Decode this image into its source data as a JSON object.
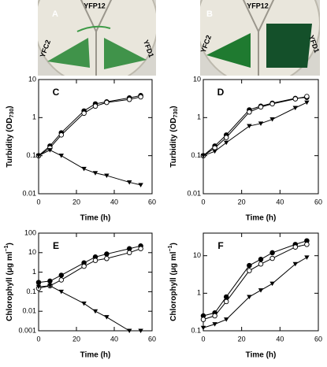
{
  "photos": [
    {
      "label": "A",
      "top": "YFP12",
      "left": "YFC2",
      "right": "YFD1"
    },
    {
      "label": "B",
      "top": "YFP12",
      "left": "YFC2",
      "right": "YFD1"
    }
  ],
  "chart_data": [
    {
      "type": "line",
      "panel": "C",
      "xlabel": "Time (h)",
      "ylabel_parts": [
        "Turbidity (OD",
        "730",
        ")"
      ],
      "ylabel_styles": [
        "normal",
        "sub",
        "normal"
      ],
      "log_y": true,
      "xlim": [
        0,
        60
      ],
      "xticks": [
        0,
        20,
        40,
        60
      ],
      "ylim": [
        0.01,
        10
      ],
      "yticks": [
        0.01,
        0.1,
        1,
        10
      ],
      "x": [
        0,
        6,
        12,
        24,
        30,
        36,
        48,
        54
      ],
      "series": [
        {
          "marker": "filled-circle",
          "color": "#000000",
          "values": [
            0.1,
            0.18,
            0.4,
            1.5,
            2.3,
            2.6,
            3.3,
            3.8
          ]
        },
        {
          "marker": "open-circle",
          "color": "#000000",
          "values": [
            0.1,
            0.16,
            0.35,
            1.3,
            2.0,
            2.5,
            3.0,
            3.5
          ]
        },
        {
          "marker": "triangle-down",
          "color": "#000000",
          "values": [
            0.1,
            0.14,
            0.1,
            0.045,
            0.035,
            0.03,
            0.02,
            0.017
          ]
        }
      ]
    },
    {
      "type": "line",
      "panel": "D",
      "xlabel": "Time (h)",
      "ylabel_parts": [
        "Turbidity (OD",
        "730",
        ")"
      ],
      "ylabel_styles": [
        "normal",
        "sub",
        "normal"
      ],
      "log_y": true,
      "xlim": [
        0,
        60
      ],
      "xticks": [
        0,
        20,
        40,
        60
      ],
      "ylim": [
        0.01,
        10
      ],
      "yticks": [
        0.01,
        0.1,
        1,
        10
      ],
      "x": [
        0,
        6,
        12,
        24,
        30,
        36,
        48,
        54
      ],
      "series": [
        {
          "marker": "filled-circle",
          "color": "#000000",
          "values": [
            0.1,
            0.18,
            0.35,
            1.6,
            2.0,
            2.4,
            3.2,
            3.4
          ]
        },
        {
          "marker": "open-circle",
          "color": "#000000",
          "values": [
            0.1,
            0.16,
            0.3,
            1.4,
            1.9,
            2.3,
            3.1,
            3.6
          ]
        },
        {
          "marker": "triangle-down",
          "color": "#000000",
          "values": [
            0.1,
            0.13,
            0.22,
            0.6,
            0.7,
            0.9,
            1.8,
            2.5
          ]
        }
      ]
    },
    {
      "type": "line",
      "panel": "E",
      "xlabel": "Time (h)",
      "ylabel_parts": [
        "Chlorophyll (μg ml",
        "−1",
        ")"
      ],
      "ylabel_styles": [
        "normal",
        "sup",
        "normal"
      ],
      "log_y": true,
      "xlim": [
        0,
        60
      ],
      "xticks": [
        0,
        20,
        40,
        60
      ],
      "ylim": [
        0.001,
        100
      ],
      "yticks": [
        0.001,
        0.01,
        0.1,
        1,
        10,
        100
      ],
      "x": [
        0,
        6,
        12,
        24,
        30,
        36,
        48,
        54
      ],
      "series": [
        {
          "marker": "filled-circle",
          "color": "#000000",
          "values": [
            0.3,
            0.35,
            0.7,
            3,
            6,
            8.5,
            16,
            22
          ]
        },
        {
          "marker": "open-circle",
          "color": "#000000",
          "values": [
            0.15,
            0.2,
            0.4,
            2,
            4,
            5,
            10,
            16
          ]
        },
        {
          "marker": "triangle-down",
          "color": "#000000",
          "values": [
            0.18,
            0.2,
            0.1,
            0.025,
            0.01,
            0.005,
            0.001,
            0.001
          ]
        }
      ]
    },
    {
      "type": "line",
      "panel": "F",
      "xlabel": "Time (h)",
      "ylabel_parts": [
        "Chlorophyll (μg ml",
        "−1",
        ")"
      ],
      "ylabel_styles": [
        "normal",
        "sup",
        "normal"
      ],
      "log_y": true,
      "xlim": [
        0,
        60
      ],
      "xticks": [
        0,
        20,
        40,
        60
      ],
      "ylim": [
        0.1,
        40
      ],
      "yticks": [
        0.1,
        1,
        10
      ],
      "x": [
        0,
        6,
        12,
        24,
        30,
        36,
        48,
        54
      ],
      "series": [
        {
          "marker": "filled-circle",
          "color": "#000000",
          "values": [
            0.25,
            0.3,
            0.8,
            5.5,
            8,
            12,
            20,
            25
          ]
        },
        {
          "marker": "open-circle",
          "color": "#000000",
          "values": [
            0.2,
            0.25,
            0.6,
            4,
            6,
            8.5,
            17,
            20
          ]
        },
        {
          "marker": "triangle-down",
          "color": "#000000",
          "values": [
            0.12,
            0.15,
            0.2,
            0.8,
            1.2,
            1.8,
            6,
            9
          ]
        }
      ]
    }
  ]
}
